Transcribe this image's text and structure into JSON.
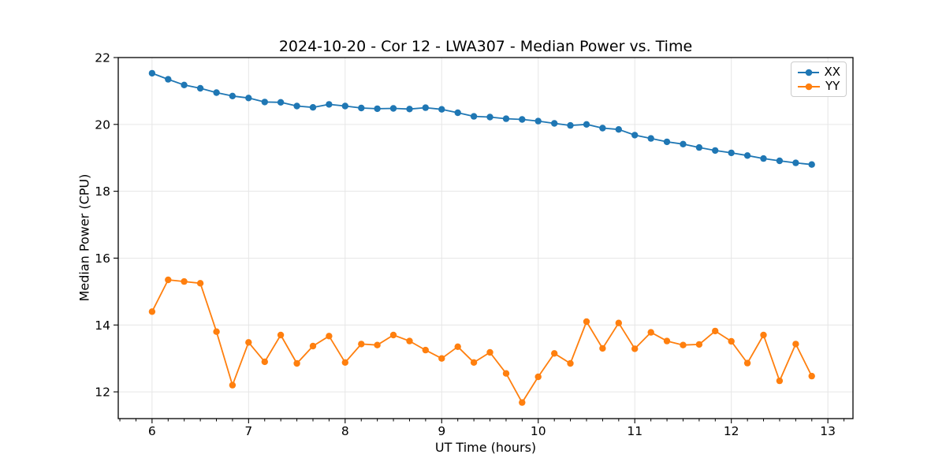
{
  "accent_colors": {
    "background": "#ffffff",
    "axes": "#000000",
    "grid": "#e6e6e6"
  },
  "chart_data": {
    "type": "line",
    "title": "2024-10-20 - Cor 12 - LWA307 - Median Power vs. Time",
    "xlabel": "UT Time (hours)",
    "ylabel": "Median Power (CPU)",
    "xlim": [
      5.65,
      13.26
    ],
    "ylim": [
      11.2,
      22.0
    ],
    "xticks": [
      6,
      7,
      8,
      9,
      10,
      11,
      12,
      13
    ],
    "yticks": [
      12,
      14,
      16,
      18,
      20,
      22
    ],
    "x_minor_step": 0.16667,
    "grid": true,
    "legend_position": "upper right",
    "x": [
      6.0,
      6.167,
      6.333,
      6.5,
      6.667,
      6.833,
      7.0,
      7.167,
      7.333,
      7.5,
      7.667,
      7.833,
      8.0,
      8.167,
      8.333,
      8.5,
      8.667,
      8.833,
      9.0,
      9.167,
      9.333,
      9.5,
      9.667,
      9.833,
      10.0,
      10.167,
      10.333,
      10.5,
      10.667,
      10.833,
      11.0,
      11.167,
      11.333,
      11.5,
      11.667,
      11.833,
      12.0,
      12.167,
      12.333,
      12.5,
      12.667,
      12.833
    ],
    "series": [
      {
        "name": "XX",
        "color": "#1f77b4",
        "values": [
          21.53,
          21.35,
          21.18,
          21.08,
          20.95,
          20.85,
          20.79,
          20.67,
          20.66,
          20.55,
          20.51,
          20.6,
          20.55,
          20.49,
          20.47,
          20.48,
          20.46,
          20.5,
          20.45,
          20.35,
          20.24,
          20.22,
          20.17,
          20.15,
          20.1,
          20.03,
          19.97,
          20.0,
          19.89,
          19.85,
          19.68,
          19.58,
          19.48,
          19.41,
          19.31,
          19.22,
          19.15,
          19.07,
          18.98,
          18.91,
          18.85,
          18.8
        ]
      },
      {
        "name": "YY",
        "color": "#ff7f0e",
        "values": [
          14.4,
          15.35,
          15.3,
          15.25,
          13.8,
          12.2,
          13.48,
          12.9,
          13.7,
          12.85,
          13.37,
          13.67,
          12.88,
          13.43,
          13.4,
          13.7,
          13.52,
          13.25,
          13.0,
          13.35,
          12.88,
          13.18,
          12.55,
          11.68,
          12.45,
          13.15,
          12.85,
          14.1,
          13.3,
          14.06,
          13.29,
          13.78,
          13.52,
          13.4,
          13.42,
          13.82,
          13.51,
          12.86,
          13.7,
          12.33,
          13.43,
          12.47
        ]
      }
    ]
  }
}
